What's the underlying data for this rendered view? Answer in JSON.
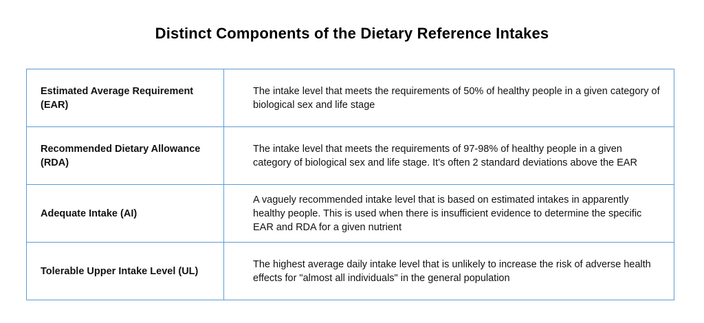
{
  "title": "Distinct Components of the Dietary Reference Intakes",
  "rows": [
    {
      "term": "Estimated Average Requirement (EAR)",
      "definition": "The intake level that meets the requirements of 50% of healthy people in a given category of biological sex and life stage"
    },
    {
      "term": "Recommended Dietary Allowance (RDA)",
      "definition": "The intake level that meets the requirements of 97-98% of healthy people in a given category of biological sex and life stage. It's often 2 standard deviations above the EAR"
    },
    {
      "term": "Adequate Intake (AI)",
      "definition": "A vaguely recommended intake level that is based on estimated intakes in apparently healthy people. This is used when there is insufficient evidence to determine the specific EAR and RDA for a given nutrient"
    },
    {
      "term": "Tolerable Upper Intake Level (UL)",
      "definition": "The highest average daily intake level that is unlikely to increase the risk of adverse health effects for \"almost all individuals\" in the general population"
    }
  ],
  "colors": {
    "border": "#5b9bd5",
    "text": "#111111"
  }
}
